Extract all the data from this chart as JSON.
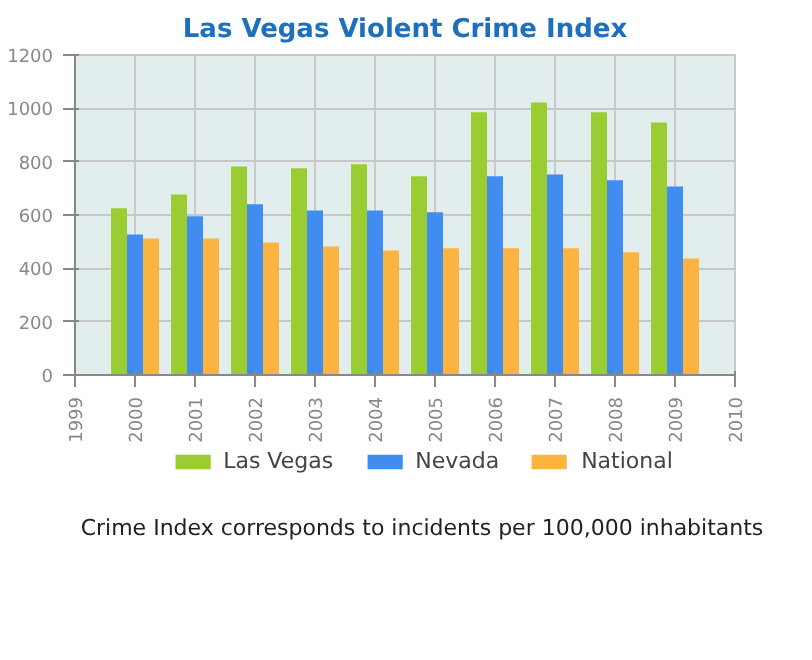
{
  "chart_data": {
    "type": "bar",
    "title": "Las Vegas Violent Crime Index",
    "x": [
      2000,
      2001,
      2002,
      2003,
      2004,
      2005,
      2006,
      2007,
      2008,
      2009
    ],
    "series": [
      {
        "name": "Las Vegas",
        "color": "#9acd32",
        "values": [
          625,
          677,
          782,
          775,
          790,
          745,
          985,
          1022,
          985,
          947
        ]
      },
      {
        "name": "Nevada",
        "color": "#418cf0",
        "values": [
          527,
          595,
          640,
          617,
          617,
          610,
          745,
          752,
          730,
          707
        ]
      },
      {
        "name": "National",
        "color": "#fcb441",
        "values": [
          512,
          512,
          497,
          482,
          467,
          475,
          475,
          475,
          460,
          437
        ]
      }
    ],
    "xlim": [
      1999,
      2010
    ],
    "xticks": [
      1999,
      2000,
      2001,
      2002,
      2003,
      2004,
      2005,
      2006,
      2007,
      2008,
      2009,
      2010
    ],
    "ylim": [
      0,
      1200
    ],
    "yticks": [
      0,
      200,
      400,
      600,
      800,
      1000,
      1200
    ],
    "grid": true,
    "legend": "bottom",
    "annotations": [
      "Crime Index corresponds to incidents per 100,000 inhabitants"
    ]
  }
}
